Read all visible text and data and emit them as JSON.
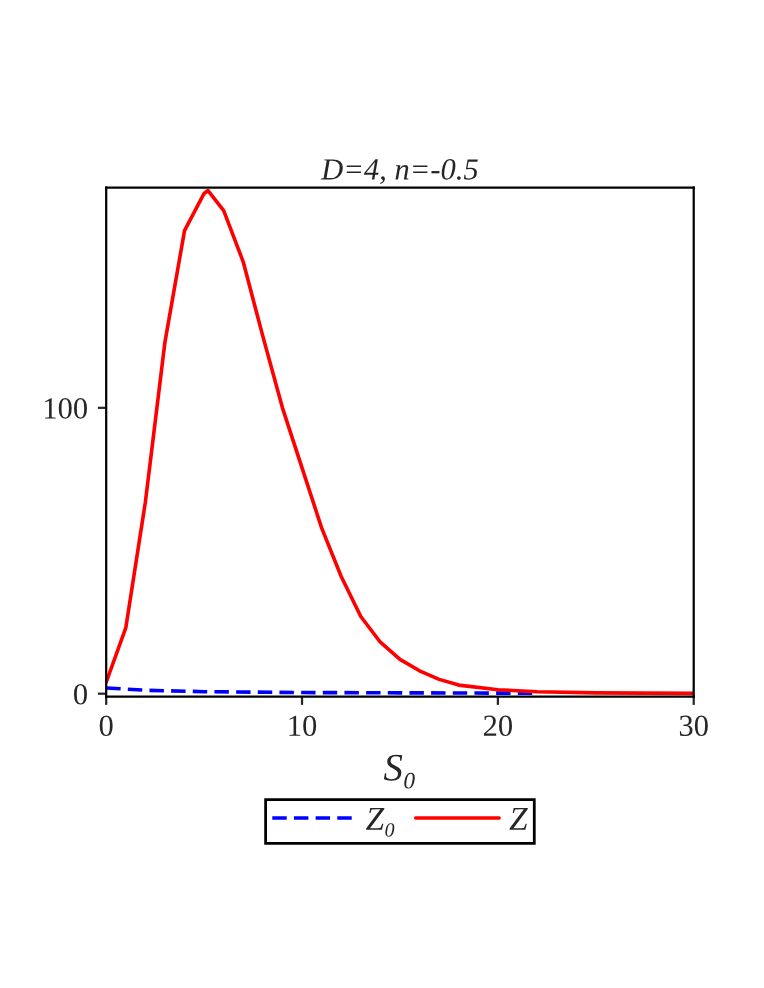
{
  "chart_data": {
    "type": "line",
    "title": "D=4, n=-0.5",
    "xlabel": "S₀",
    "x": [
      0,
      1,
      2,
      3,
      4,
      5,
      5.2,
      6,
      7,
      8,
      9,
      10,
      11,
      12,
      13,
      14,
      15,
      16,
      17,
      18,
      20,
      22,
      25,
      30
    ],
    "series": [
      {
        "name": "Z₀",
        "color": "#0000ff",
        "line_style": "dashed",
        "x": [
          0,
          2,
          5,
          10,
          15,
          20,
          22
        ],
        "values": [
          2,
          1.2,
          0.7,
          0.4,
          0.3,
          0.2,
          0.2
        ]
      },
      {
        "name": "Z",
        "color": "#ff0000",
        "line_style": "solid",
        "values": [
          4,
          23,
          67,
          123,
          162,
          175,
          176,
          169,
          151,
          125,
          100,
          79,
          58,
          41,
          27,
          18,
          12,
          8,
          5,
          3,
          1.4,
          0.7,
          0.3,
          0.1
        ]
      }
    ],
    "xlim": [
      0,
      30
    ],
    "ylim": [
      -1,
      177
    ],
    "xticks": [
      0,
      10,
      20,
      30
    ],
    "yticks": [
      0,
      100
    ],
    "grid": false,
    "legend": "bottom"
  }
}
